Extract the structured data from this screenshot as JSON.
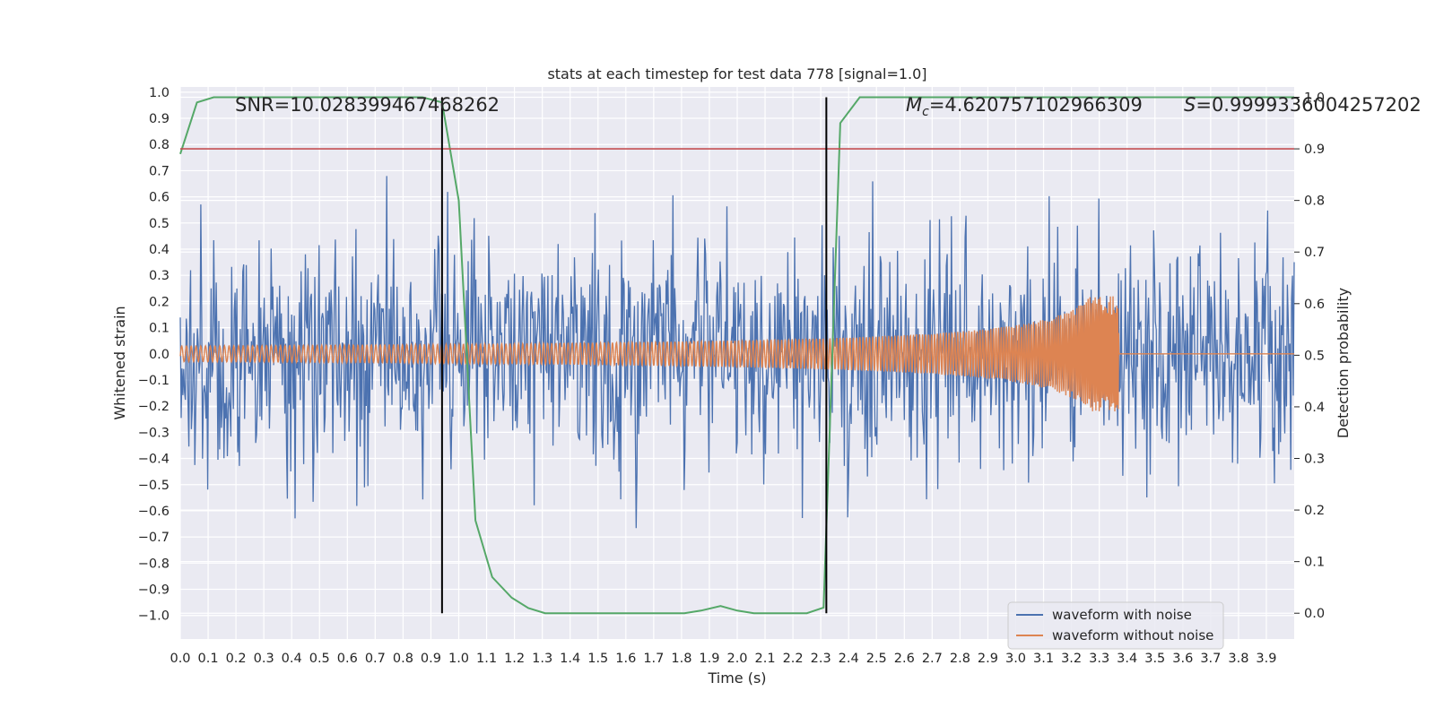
{
  "chart_data": {
    "type": "line",
    "title": "stats at each timestep for test data 778 [signal=1.0]",
    "xlabel": "Time (s)",
    "ylabel_left": "Whitened strain",
    "ylabel_right": "Detection probability",
    "xlim": [
      0.0,
      4.0
    ],
    "ylim_left": [
      -1.09,
      1.02
    ],
    "ylim_right": [
      -0.05,
      1.02
    ],
    "x_ticks": [
      "0.0",
      "0.1",
      "0.2",
      "0.3",
      "0.4",
      "0.5",
      "0.6",
      "0.7",
      "0.8",
      "0.9",
      "1.0",
      "1.1",
      "1.2",
      "1.3",
      "1.4",
      "1.5",
      "1.6",
      "1.7",
      "1.8",
      "1.9",
      "2.0",
      "2.1",
      "2.2",
      "2.3",
      "2.4",
      "2.5",
      "2.6",
      "2.7",
      "2.8",
      "2.9",
      "3.0",
      "3.1",
      "3.2",
      "3.3",
      "3.4",
      "3.5",
      "3.6",
      "3.7",
      "3.8",
      "3.9"
    ],
    "y_ticks_left": [
      "-1.0",
      "-0.9",
      "-0.8",
      "-0.7",
      "-0.6",
      "-0.5",
      "-0.4",
      "-0.3",
      "-0.2",
      "-0.1",
      "0.0",
      "0.1",
      "0.2",
      "0.3",
      "0.4",
      "0.5",
      "0.6",
      "0.7",
      "0.8",
      "0.9",
      "1.0"
    ],
    "y_ticks_right": [
      "0.0",
      "0.1",
      "0.2",
      "0.3",
      "0.4",
      "0.5",
      "0.6",
      "0.7",
      "0.8",
      "0.9",
      "1.0"
    ],
    "annotations": {
      "snr": "SNR=10.028399467468262",
      "mc_symbol": "M",
      "mc_sub": "c",
      "mc_value": "=4.620757102966309",
      "s_symbol": "S",
      "s_value": "=0.9999336004257202"
    },
    "legend": {
      "position": "lower right",
      "entries": [
        "waveform with noise",
        "waveform without noise"
      ]
    },
    "series": [
      {
        "name": "waveform with noise",
        "color": "#4c72b0",
        "axis": "left",
        "kind": "noise",
        "sigma": 0.22,
        "n_samples": 1300,
        "seed": 778
      },
      {
        "name": "waveform without noise",
        "color": "#dd8452",
        "axis": "left",
        "kind": "chirp",
        "start_amplitude": 0.03,
        "peak_amplitude": 0.22,
        "merger_time": 3.37,
        "post_merger_value": 0.0
      },
      {
        "name": "detection probability",
        "color": "#55a868",
        "axis": "right",
        "x": [
          0.0,
          0.06,
          0.12,
          0.19,
          0.25,
          0.31,
          0.37,
          0.44,
          0.5,
          0.56,
          0.62,
          0.69,
          0.75,
          0.81,
          0.87,
          0.94,
          1.0,
          1.06,
          1.12,
          1.19,
          1.25,
          1.31,
          1.37,
          1.44,
          1.5,
          1.56,
          1.62,
          1.69,
          1.75,
          1.81,
          1.87,
          1.94,
          2.0,
          2.06,
          2.12,
          2.19,
          2.25,
          2.31,
          2.37,
          2.44,
          2.5,
          2.56,
          2.62,
          2.69,
          2.75,
          2.81,
          2.87,
          2.94,
          3.0,
          3.06,
          3.12,
          3.19,
          3.25,
          3.31,
          3.37,
          3.44,
          3.5,
          3.56,
          3.62,
          3.69,
          3.75,
          3.81,
          3.87,
          3.94,
          4.0
        ],
        "values": [
          0.89,
          0.99,
          1.0,
          1.0,
          1.0,
          1.0,
          1.0,
          1.0,
          1.0,
          1.0,
          1.0,
          1.0,
          1.0,
          1.0,
          1.0,
          0.99,
          0.8,
          0.18,
          0.07,
          0.03,
          0.01,
          0.0,
          0.0,
          0.0,
          0.0,
          0.0,
          0.0,
          0.0,
          0.0,
          0.0,
          0.005,
          0.014,
          0.005,
          0.0,
          0.0,
          0.0,
          0.0,
          0.011,
          0.95,
          1.0,
          1.0,
          1.0,
          1.0,
          1.0,
          1.0,
          1.0,
          1.0,
          1.0,
          1.0,
          1.0,
          1.0,
          1.0,
          1.0,
          1.0,
          1.0,
          1.0,
          1.0,
          1.0,
          1.0,
          1.0,
          1.0,
          1.0,
          1.0,
          1.0,
          1.0
        ]
      }
    ],
    "threshold": {
      "axis": "right",
      "value": 0.9,
      "color": "#c44e52"
    },
    "vertical_markers": [
      {
        "x": 0.94,
        "y_range_right": [
          0.0,
          1.0
        ],
        "color": "#000000"
      },
      {
        "x": 2.32,
        "y_range_right": [
          0.0,
          1.0
        ],
        "color": "#000000"
      }
    ],
    "grid": true
  }
}
